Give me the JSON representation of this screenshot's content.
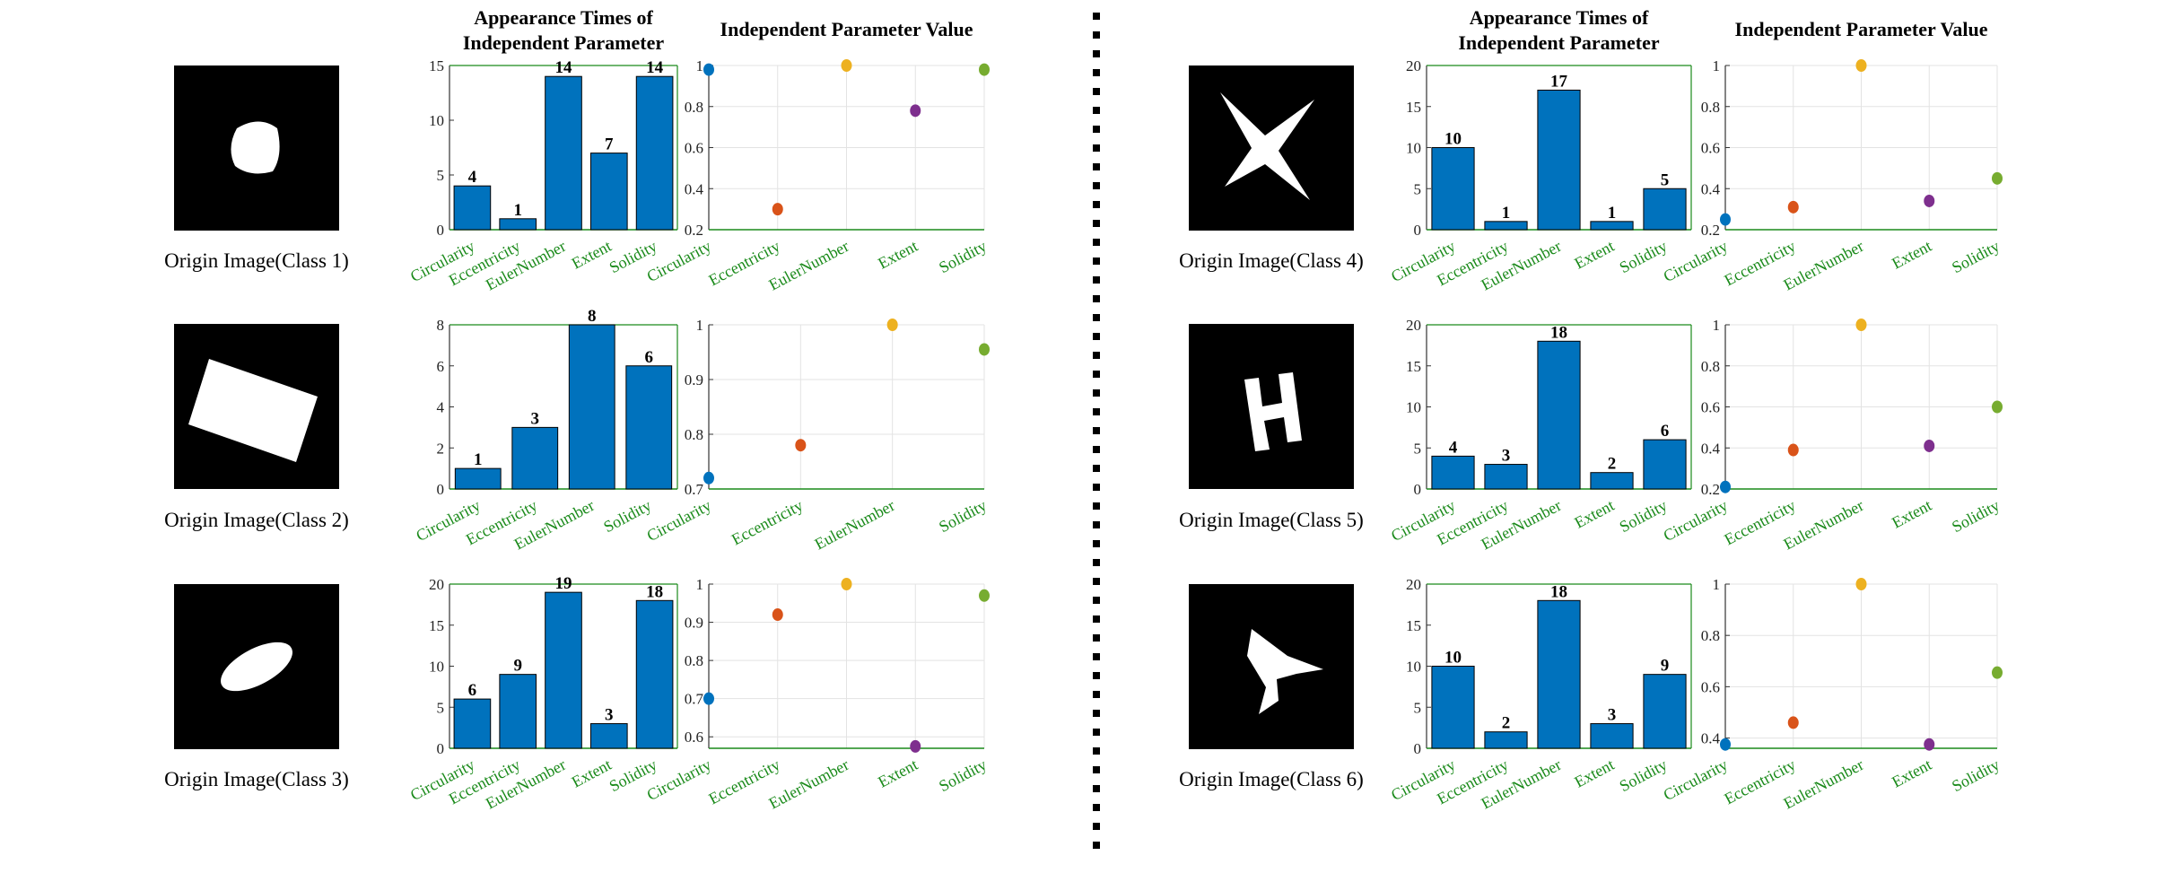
{
  "captions": [
    "Origin Image(Class 1)",
    "Origin Image(Class 2)",
    "Origin Image(Class 3)",
    "Origin Image(Class 4)",
    "Origin Image(Class 5)",
    "Origin Image(Class 6)"
  ],
  "chart_data": [
    {
      "type": "bar",
      "title": [
        "Appearance Times of",
        "Independent Parameter"
      ],
      "categories": [
        "Circularity",
        "Eccentricity",
        "EulerNumber",
        "Extent",
        "Solidity"
      ],
      "values": [
        4,
        1,
        14,
        7,
        14
      ],
      "color": "#0072bd",
      "ylim": [
        0,
        15
      ],
      "yticks": [
        0,
        5,
        10,
        15
      ]
    },
    {
      "type": "scatter",
      "title": [
        "Independent Parameter Value"
      ],
      "categories": [
        "Circularity",
        "Eccentricity",
        "EulerNumber",
        "Extent",
        "Solidity"
      ],
      "values": [
        0.98,
        0.3,
        1,
        0.78,
        0.98
      ],
      "colors": [
        "#0072bd",
        "#d95319",
        "#edb120",
        "#7e2f8e",
        "#77ac30"
      ],
      "ylim": [
        0.2,
        1
      ],
      "yticks": [
        0.2,
        0.4,
        0.6,
        0.8,
        1
      ],
      "grid": true
    },
    {
      "type": "bar",
      "categories": [
        "Circularity",
        "Eccentricity",
        "EulerNumber",
        "Solidity"
      ],
      "values": [
        1,
        3,
        8,
        6
      ],
      "color": "#0072bd",
      "ylim": [
        0,
        8
      ],
      "yticks": [
        0,
        2,
        4,
        6,
        8
      ]
    },
    {
      "type": "scatter",
      "categories": [
        "Circularity",
        "Eccentricity",
        "EulerNumber",
        "Solidity"
      ],
      "values": [
        0.72,
        0.78,
        1,
        0.955
      ],
      "colors": [
        "#0072bd",
        "#d95319",
        "#edb120",
        "#77ac30"
      ],
      "ylim": [
        0.7,
        1
      ],
      "yticks": [
        0.7,
        0.8,
        0.9,
        1
      ],
      "grid": true
    },
    {
      "type": "bar",
      "categories": [
        "Circularity",
        "Eccentricity",
        "EulerNumber",
        "Extent",
        "Solidity"
      ],
      "values": [
        6,
        9,
        19,
        3,
        18
      ],
      "color": "#0072bd",
      "ylim": [
        0,
        20
      ],
      "yticks": [
        0,
        5,
        10,
        15,
        20
      ]
    },
    {
      "type": "scatter",
      "categories": [
        "Circularity",
        "Eccentricity",
        "EulerNumber",
        "Extent",
        "Solidity"
      ],
      "values": [
        0.7,
        0.92,
        1,
        0.575,
        0.97
      ],
      "colors": [
        "#0072bd",
        "#d95319",
        "#edb120",
        "#7e2f8e",
        "#77ac30"
      ],
      "ylim": [
        0.57,
        1
      ],
      "yticks": [
        0.6,
        0.7,
        0.8,
        0.9,
        1
      ],
      "grid": true
    },
    {
      "type": "bar",
      "title": [
        "Appearance Times of",
        "Independent Parameter"
      ],
      "categories": [
        "Circularity",
        "Eccentricity",
        "EulerNumber",
        "Extent",
        "Solidity"
      ],
      "values": [
        10,
        1,
        17,
        1,
        5
      ],
      "color": "#0072bd",
      "ylim": [
        0,
        20
      ],
      "yticks": [
        0,
        5,
        10,
        15,
        20
      ]
    },
    {
      "type": "scatter",
      "title": [
        "Independent Parameter Value"
      ],
      "categories": [
        "Circularity",
        "Eccentricity",
        "EulerNumber",
        "Extent",
        "Solidity"
      ],
      "values": [
        0.25,
        0.31,
        1,
        0.34,
        0.45
      ],
      "colors": [
        "#0072bd",
        "#d95319",
        "#edb120",
        "#7e2f8e",
        "#77ac30"
      ],
      "ylim": [
        0.2,
        1
      ],
      "yticks": [
        0.2,
        0.4,
        0.6,
        0.8,
        1
      ],
      "grid": true
    },
    {
      "type": "bar",
      "categories": [
        "Circularity",
        "Eccentricity",
        "EulerNumber",
        "Extent",
        "Solidity"
      ],
      "values": [
        4,
        3,
        18,
        2,
        6
      ],
      "color": "#0072bd",
      "ylim": [
        0,
        20
      ],
      "yticks": [
        0,
        5,
        10,
        15,
        20
      ]
    },
    {
      "type": "scatter",
      "categories": [
        "Circularity",
        "Eccentricity",
        "EulerNumber",
        "Extent",
        "Solidity"
      ],
      "values": [
        0.21,
        0.39,
        1,
        0.41,
        0.6
      ],
      "colors": [
        "#0072bd",
        "#d95319",
        "#edb120",
        "#7e2f8e",
        "#77ac30"
      ],
      "ylim": [
        0.2,
        1
      ],
      "yticks": [
        0.2,
        0.4,
        0.6,
        0.8,
        1
      ],
      "grid": true
    },
    {
      "type": "bar",
      "categories": [
        "Circularity",
        "Eccentricity",
        "EulerNumber",
        "Extent",
        "Solidity"
      ],
      "values": [
        10,
        2,
        18,
        3,
        9
      ],
      "color": "#0072bd",
      "ylim": [
        0,
        20
      ],
      "yticks": [
        0,
        5,
        10,
        15,
        20
      ]
    },
    {
      "type": "scatter",
      "categories": [
        "Circularity",
        "Eccentricity",
        "EulerNumber",
        "Extent",
        "Solidity"
      ],
      "values": [
        0.375,
        0.46,
        1,
        0.375,
        0.655
      ],
      "colors": [
        "#0072bd",
        "#d95319",
        "#edb120",
        "#7e2f8e",
        "#77ac30"
      ],
      "ylim": [
        0.36,
        1
      ],
      "yticks": [
        0.4,
        0.6,
        0.8,
        1
      ],
      "grid": true
    }
  ]
}
